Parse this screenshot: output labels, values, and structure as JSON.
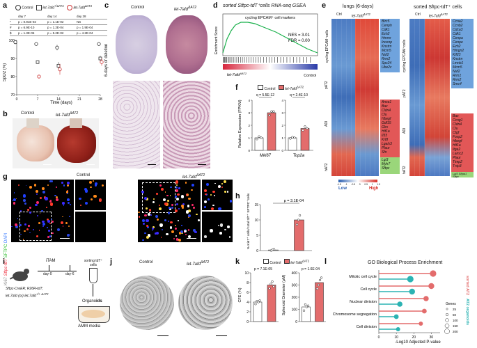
{
  "panels": {
    "a": "a",
    "b": "b",
    "c": "c",
    "d": "d",
    "e": "e",
    "f": "f",
    "g": "g",
    "h": "h",
    "i": "i",
    "j": "j",
    "k": "k",
    "l": "l"
  },
  "groups": {
    "control": "Control",
    "mutant": "let-7afd",
    "mutant_sup": "ΔAT2",
    "ctrl_short": "Ctrl"
  },
  "panel_a": {
    "legend": [
      "Control",
      "let-7afd",
      "let-7afd"
    ],
    "legend_sup": [
      "",
      "+/ΔAT2",
      "ΔAT2"
    ],
    "stats_header": [
      "day 7",
      "day 14",
      "day 28"
    ],
    "stats_rows": [
      {
        "sym": "*",
        "vals": [
          "p = 0.91E-02",
          "p = 1.1E-02",
          "NS"
        ]
      },
      {
        "sym": "#",
        "vals": [
          "p = 6.9E-10",
          "p = 1.2E-04",
          "p = 1.9E-04"
        ]
      },
      {
        "sym": "$",
        "vals": [
          "p = 1.3E-06",
          "p = 5.2E-02",
          "p = 4.2E-04"
        ]
      }
    ],
    "chart_data": {
      "type": "line",
      "x": [
        0,
        7,
        14,
        28
      ],
      "xlabel": "Time (days)",
      "ylabel": "SpO2 (%)",
      "ylim": [
        70,
        100
      ],
      "xticks": [
        "0",
        "7",
        "14",
        "21",
        "28"
      ],
      "yticks": [
        "70",
        "80",
        "90",
        "100"
      ],
      "series": [
        {
          "name": "Control",
          "x": [
            0,
            7,
            14,
            28
          ],
          "values": [
            99,
            98,
            96,
            98
          ],
          "err": [
            0.5,
            0.8,
            1.5,
            1.0
          ]
        },
        {
          "name": "let-7afd +/ΔAT2",
          "x": [
            7,
            14,
            28
          ],
          "values": [
            88,
            86,
            90
          ],
          "err": [
            1.0,
            2.0,
            1.5
          ]
        },
        {
          "name": "let-7afd ΔAT2",
          "x": [
            7,
            14,
            28
          ],
          "values": [
            80,
            84,
            88
          ],
          "err": [
            1.0,
            3.0,
            2.0
          ]
        }
      ]
    }
  },
  "panel_b": {
    "left": "Control",
    "right": "let-7afd",
    "right_sup": "ΔAT2"
  },
  "panel_c": {
    "left": "Control",
    "right": "let-7afd",
    "right_sup": "ΔAT2",
    "side": "6-days of deletion"
  },
  "panel_d": {
    "title": "sorted Sftpc-tdT⁺cells RNA-seq GSEA",
    "set": "cycling EPCAM⁺ cell markers",
    "nes": "NES = 3.01",
    "fdr": "FDR = 0.00",
    "ylabel": "Enrichment Score",
    "left": "let-7afd",
    "left_sup": "ΔAT2",
    "right": "Control"
  },
  "panel_e": {
    "left_title": "lungs (6-days)",
    "right_title": "sorted Sftpc-tdT⁺ cells",
    "col_ctrl": "Ctrl",
    "col_mut": "let-7afd",
    "col_mut_sup": "ΔAT2",
    "left_groups": [
      "cycling EPCAM⁺cells",
      "pAT2",
      "ADI",
      "hAT2"
    ],
    "right_groups": [
      "cycling EPCAM⁺cells",
      "pAT2",
      "ADI",
      "hAT2"
    ],
    "left_genes_cyc": [
      "Birc5",
      "Cenph",
      "Cdk1",
      "Ezh2",
      "Hmmr",
      "Incenp",
      "Knstrn",
      "Mcm5",
      "Nuf2",
      "Rrm2",
      "Spc24",
      "Ube2c"
    ],
    "left_genes_adi": [
      "Anxa1",
      "Bax",
      "Cldn4",
      "Clu",
      "Hbegf",
      "Gdf15",
      "Glrx",
      "Hif1a",
      "Il33",
      "Krt8",
      "Lgals3",
      "Plaur",
      "Sfn"
    ],
    "left_genes_hat2": [
      "Lgi3",
      "Myh7",
      "Sftpc"
    ],
    "right_genes_cyc": [
      "Ccna2",
      "Ccnb2",
      "Cdca3",
      "Cdk1",
      "Cenpa",
      "Cenpe",
      "Ezh2",
      "Hmgn2",
      "Kif23",
      "Knstrn",
      "Lmnb1",
      "Mcm5",
      "Nuf2",
      "Rrm1",
      "Rrm2",
      "Smc4"
    ],
    "right_genes_adi": [
      "Bax",
      "Ccng1",
      "Cldn4",
      "Clu",
      "Ctgf",
      "Foxp2",
      "Hbegf",
      "Hif1a",
      "Itga2",
      "Lamc2",
      "Plaur",
      "Timp2",
      "Tnip3"
    ],
    "right_genes_hat2": [
      "Lgi3",
      "Sftpa1",
      "Sftpc"
    ],
    "scale_ticks": [
      "-1.5",
      "-1",
      "-0.5",
      "0",
      "0.5",
      "1",
      "1.5"
    ],
    "scale_low": "Low",
    "scale_high": "High"
  },
  "panel_f": {
    "ylabel": "Relative Expression (FPKM)",
    "legend": [
      "Control",
      "let-7afd"
    ],
    "legend_sup": [
      "",
      "ΔAT2"
    ],
    "chart_data": {
      "type": "bar",
      "categories": [
        "Mki67",
        "Top2a"
      ],
      "ylabel": "Relative Expression (FPKM)",
      "ylim": [
        0,
        4
      ],
      "yticks": [
        "0",
        "1",
        "2",
        "3",
        "4"
      ],
      "pvalues": [
        "q = 5.5E-12",
        "q = 2.4E-10"
      ],
      "series": [
        {
          "name": "Control",
          "values": [
            1.0,
            1.0
          ],
          "points": [
            [
              0.9,
              1.1,
              1.0
            ],
            [
              0.95,
              1.05,
              1.0
            ]
          ]
        },
        {
          "name": "let-7afd ΔAT2",
          "values": [
            3.0,
            1.75
          ],
          "points": [
            [
              2.8,
              3.1,
              3.1
            ],
            [
              1.6,
              1.9,
              1.75
            ]
          ]
        }
      ]
    }
  },
  "panel_g": {
    "channels": [
      "Ki67",
      "Sftpc-tdT",
      "SFTPC",
      "DAPI"
    ],
    "left": "Control",
    "right": "let-7afd",
    "right_sup": "ΔAT2"
  },
  "panel_h": {
    "pvalue": "p = 3.1E-04",
    "ylabel": "% Ki67⁺ cells/ total tdT⁺ SFTPC⁺cells",
    "chart_data": {
      "type": "bar",
      "categories": [
        "Control",
        "let-7afd ΔAT2"
      ],
      "ylabel": "% Ki67⁺ cells/ total tdT⁺ SFTPC⁺cells",
      "ylim": [
        0,
        15
      ],
      "yticks": [
        "0",
        "5",
        "10",
        "15"
      ],
      "values": [
        0.2,
        10.0
      ],
      "points": [
        [
          0.0,
          0.3,
          0.4
        ],
        [
          8.5,
          10.0,
          11.5
        ]
      ]
    }
  },
  "panel_i": {
    "itam": "iTAM",
    "day0": "day-0",
    "day6": "day-6",
    "sorting": "sorting tdT⁺ cells",
    "genotype1": "Sftpc-CreER; R26R-tdT;",
    "genotype2": "let-7afd (or) let-7afd",
    "genotype2_sup1": "+/+",
    "genotype2_sup2": "ΔAT2",
    "organoids_a": "Organo",
    "organoids_b": "ids",
    "media": "AMM media"
  },
  "panel_j": {
    "left": "Control",
    "right": "let-7afd",
    "right_sup": "ΔAT2"
  },
  "panel_k": {
    "legend": [
      "Control",
      "let-7afd"
    ],
    "legend_sup": [
      "",
      "ΔAT2"
    ],
    "chart_data": [
      {
        "type": "bar",
        "ylabel": "CFE (%)",
        "ylim": [
          0,
          10
        ],
        "yticks": [
          "0",
          "2",
          "4",
          "6",
          "8",
          "10"
        ],
        "pvalue": "p = 7.1E-05",
        "values": [
          4.0,
          7.5
        ],
        "points": [
          [
            3.6,
            4.2,
            4.0,
            4.3
          ],
          [
            6.8,
            7.7,
            8.2,
            7.2
          ]
        ]
      },
      {
        "type": "bar",
        "ylabel": "Spheroid Diameter (μM)",
        "ylim": [
          0,
          400
        ],
        "yticks": [
          "0",
          "100",
          "200",
          "300",
          "400"
        ],
        "pvalue": "p = 1.6E-04",
        "values": [
          120,
          320
        ],
        "points": [
          [
            90,
            140,
            120,
            130
          ],
          [
            270,
            300,
            340,
            360
          ]
        ]
      }
    ]
  },
  "panel_l": {
    "title": "GO Biological Process Enrichment",
    "xlabel": "-Log10 Adjusted P-value",
    "side_top": "sorted AT2",
    "side_bottom": "AT2 organoids",
    "size_legend_title": "Genes",
    "size_legend": [
      "25",
      "50",
      "100",
      "150",
      "200"
    ],
    "terms": [
      "Mitotic cell cycle",
      "Cell cycle",
      "Nuclear division",
      "Chromosome segregation",
      "Cell division"
    ],
    "chart_data": {
      "type": "scatter",
      "xlabel": "-Log10 Adjusted P-value",
      "xticks": [
        "0",
        "10",
        "20",
        "30"
      ],
      "xlim": [
        0,
        35
      ],
      "categories": [
        "Mitotic cell cycle",
        "Cell cycle",
        "Nuclear division",
        "Chromosome segregation",
        "Cell division"
      ],
      "series": [
        {
          "name": "sorted AT2",
          "values": [
            31,
            30,
            27,
            26,
            24
          ],
          "color": "#e36c6c"
        },
        {
          "name": "AT2 organoids",
          "values": [
            18,
            19,
            12,
            10,
            11
          ],
          "color": "#2bb3b3"
        }
      ]
    }
  },
  "colors": {
    "mutant": "#e36c6c",
    "control": "#ffffff",
    "teal": "#2bb3b3",
    "heat_hi": "#d73027",
    "heat_lo": "#4575b4"
  }
}
